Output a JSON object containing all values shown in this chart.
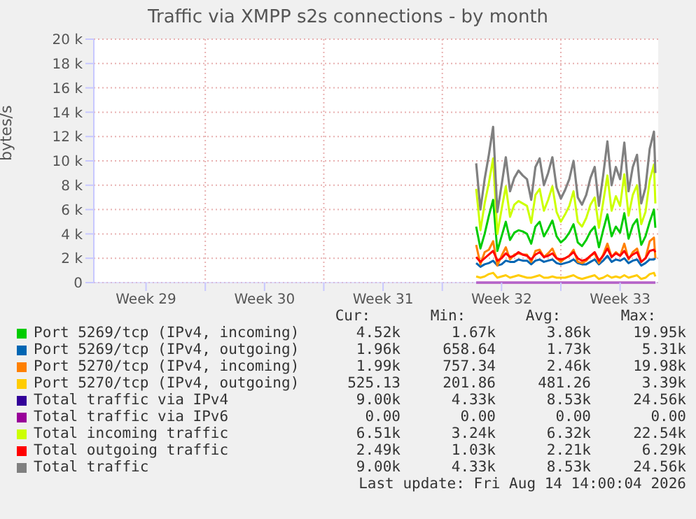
{
  "chart_data": {
    "type": "line",
    "title": "Traffic via XMPP s2s connections - by month",
    "ylabel": "bytes/s",
    "x": [
      "2026-08-04T00:00",
      "2026-08-04T06:00",
      "2026-08-04T12:00",
      "2026-08-04T18:00",
      "2026-08-05T00:00",
      "2026-08-05T06:00",
      "2026-08-05T12:00",
      "2026-08-05T18:00",
      "2026-08-06T00:00",
      "2026-08-06T06:00",
      "2026-08-06T12:00",
      "2026-08-06T18:00",
      "2026-08-07T00:00",
      "2026-08-07T06:00",
      "2026-08-07T12:00",
      "2026-08-07T18:00",
      "2026-08-08T00:00",
      "2026-08-08T06:00",
      "2026-08-08T12:00",
      "2026-08-08T18:00",
      "2026-08-09T00:00",
      "2026-08-09T06:00",
      "2026-08-09T12:00",
      "2026-08-09T18:00",
      "2026-08-10T00:00",
      "2026-08-10T06:00",
      "2026-08-10T12:00",
      "2026-08-10T18:00",
      "2026-08-11T00:00",
      "2026-08-11T06:00",
      "2026-08-11T12:00",
      "2026-08-11T18:00",
      "2026-08-12T00:00",
      "2026-08-12T06:00",
      "2026-08-12T12:00",
      "2026-08-12T18:00",
      "2026-08-13T00:00",
      "2026-08-13T06:00",
      "2026-08-13T12:00",
      "2026-08-13T18:00",
      "2026-08-14T00:00",
      "2026-08-14T06:00",
      "2026-08-14T12:00",
      "2026-08-14T14:00"
    ],
    "series": [
      {
        "name": "Port 5269/tcp (IPv4, incoming)",
        "color": "#00cc00",
        "values": [
          4600,
          2800,
          4000,
          5500,
          6800,
          2600,
          3800,
          5000,
          3500,
          4100,
          4300,
          4200,
          4000,
          3200,
          4600,
          5000,
          3800,
          4400,
          5100,
          3800,
          3300,
          3600,
          4100,
          4800,
          3300,
          3000,
          3500,
          4200,
          4600,
          2900,
          4300,
          5600,
          3800,
          4600,
          4100,
          5700,
          3600,
          4700,
          5200,
          3100,
          3800,
          5000,
          6000,
          4500
        ]
      },
      {
        "name": "Port 5269/tcp (IPv4, outgoing)",
        "color": "#0066b3",
        "values": [
          1600,
          1300,
          1500,
          1600,
          1800,
          1400,
          1500,
          1800,
          1700,
          1700,
          1900,
          1800,
          1800,
          1500,
          1800,
          1900,
          1700,
          1800,
          1900,
          1600,
          1500,
          1600,
          1700,
          1900,
          1600,
          1500,
          1500,
          1700,
          1900,
          1500,
          1800,
          2200,
          1700,
          1900,
          1800,
          2000,
          1600,
          1800,
          1900,
          1400,
          1600,
          1900,
          1900,
          2000
        ]
      },
      {
        "name": "Port 5270/tcp (IPv4, incoming)",
        "color": "#ff8000",
        "values": [
          3100,
          1500,
          2500,
          2700,
          3400,
          1400,
          2200,
          2900,
          1900,
          2300,
          2400,
          2300,
          2300,
          1700,
          2600,
          2700,
          2100,
          2400,
          2800,
          2000,
          1700,
          2000,
          2200,
          2700,
          1700,
          1600,
          1800,
          2200,
          2400,
          1600,
          2300,
          3200,
          2100,
          2500,
          2200,
          3200,
          1900,
          2500,
          2800,
          1700,
          2000,
          3400,
          3700,
          2000
        ]
      },
      {
        "name": "Port 5270/tcp (IPv4, outgoing)",
        "color": "#ffcc00",
        "values": [
          500,
          400,
          500,
          700,
          800,
          400,
          500,
          600,
          400,
          500,
          600,
          500,
          400,
          400,
          500,
          600,
          400,
          400,
          500,
          400,
          400,
          400,
          500,
          600,
          400,
          300,
          400,
          500,
          600,
          300,
          400,
          600,
          400,
          500,
          400,
          600,
          400,
          500,
          600,
          300,
          400,
          700,
          800,
          500
        ]
      },
      {
        "name": "Total traffic via IPv4",
        "color": "#330099",
        "values": [
          null,
          null,
          null,
          null,
          null,
          null,
          null,
          null,
          null,
          null,
          null,
          null,
          null,
          null,
          null,
          null,
          null,
          null,
          null,
          null,
          null,
          null,
          null,
          null,
          null,
          null,
          null,
          null,
          null,
          null,
          null,
          null,
          null,
          null,
          null,
          null,
          null,
          null,
          null,
          null,
          null,
          null,
          null,
          null
        ]
      },
      {
        "name": "Total traffic via IPv6",
        "color": "#990099",
        "values": [
          0,
          0,
          0,
          0,
          0,
          0,
          0,
          0,
          0,
          0,
          0,
          0,
          0,
          0,
          0,
          0,
          0,
          0,
          0,
          0,
          0,
          0,
          0,
          0,
          0,
          0,
          0,
          0,
          0,
          0,
          0,
          0,
          0,
          0,
          0,
          0,
          0,
          0,
          0,
          0,
          0,
          0,
          0,
          0
        ]
      },
      {
        "name": "Total incoming traffic",
        "color": "#ccff00",
        "values": [
          7700,
          4300,
          6500,
          8200,
          10200,
          4000,
          6000,
          7900,
          5400,
          6400,
          6700,
          6500,
          6300,
          4900,
          7200,
          7700,
          5900,
          6800,
          7900,
          5800,
          5000,
          5600,
          6300,
          7500,
          5000,
          4600,
          5300,
          6400,
          7000,
          4500,
          6600,
          8800,
          5900,
          7100,
          6300,
          8900,
          5500,
          7200,
          8000,
          4800,
          5800,
          8400,
          9700,
          6500
        ]
      },
      {
        "name": "Total outgoing traffic",
        "color": "#ff0000",
        "values": [
          2100,
          1700,
          2000,
          2300,
          2600,
          1800,
          2000,
          2400,
          2100,
          2200,
          2500,
          2300,
          2200,
          1900,
          2300,
          2500,
          2100,
          2200,
          2400,
          2000,
          1900,
          2000,
          2200,
          2500,
          2000,
          1800,
          1900,
          2200,
          2500,
          1800,
          2200,
          2800,
          2100,
          2400,
          2200,
          2600,
          2000,
          2300,
          2500,
          1700,
          2000,
          2600,
          2700,
          2500
        ]
      },
      {
        "name": "Total traffic",
        "color": "#808080",
        "values": [
          9800,
          6000,
          8500,
          10500,
          12800,
          5800,
          8000,
          10300,
          7500,
          8600,
          9200,
          8800,
          8500,
          6800,
          9500,
          10200,
          8000,
          9000,
          10300,
          7800,
          6900,
          7600,
          8500,
          10000,
          7000,
          6400,
          7200,
          8600,
          9500,
          6300,
          8800,
          11600,
          8000,
          9500,
          8500,
          11500,
          7500,
          9500,
          10500,
          6500,
          7800,
          11000,
          12400,
          9000
        ]
      }
    ],
    "xlim": [
      "2026-07-12T10:00",
      "2026-08-14T18:00"
    ],
    "xticks": [
      {
        "value": "2026-07-15T12:00",
        "label": "Week 29"
      },
      {
        "value": "2026-07-19T00:00",
        "label": null
      },
      {
        "value": "2026-07-22T12:00",
        "label": "Week 30"
      },
      {
        "value": "2026-07-26T00:00",
        "label": null
      },
      {
        "value": "2026-07-29T12:00",
        "label": "Week 31"
      },
      {
        "value": "2026-08-02T00:00",
        "label": null
      },
      {
        "value": "2026-08-05T12:00",
        "label": "Week 32"
      },
      {
        "value": "2026-08-09T00:00",
        "label": null
      },
      {
        "value": "2026-08-12T12:00",
        "label": "Week 33"
      }
    ],
    "ylim": [
      0,
      20000
    ],
    "yticks": [
      0,
      {
        "value": 2000,
        "label": "2 k"
      },
      {
        "value": 4000,
        "label": "4 k"
      },
      {
        "value": 6000,
        "label": "6 k"
      },
      {
        "value": 8000,
        "label": "8 k"
      },
      {
        "value": 10000,
        "label": "10 k"
      },
      {
        "value": 12000,
        "label": "12 k"
      },
      {
        "value": 14000,
        "label": "14 k"
      },
      {
        "value": 16000,
        "label": "16 k"
      },
      {
        "value": 18000,
        "label": "18 k"
      },
      {
        "value": 20000,
        "label": "20 k"
      }
    ],
    "grid": true,
    "legend": "bottom",
    "marker": "none",
    "line_style": "solid",
    "annotations": [
      "Cur:",
      "Min:",
      "Avg:",
      "Max:",
      "4.52k",
      "1.67k",
      "3.86k",
      "19.95k",
      "1.96k",
      "658.64",
      "1.73k",
      "5.31k",
      "1.99k",
      "757.34",
      "2.46k",
      "19.98k",
      "525.13",
      "201.86",
      "481.26",
      "3.39k",
      "9.00k",
      "4.33k",
      "8.53k",
      "24.56k",
      "0.00",
      "0.00",
      "0.00",
      "0.00",
      "6.51k",
      "3.24k",
      "6.32k",
      "22.54k",
      "2.49k",
      "1.03k",
      "2.21k",
      "6.29k",
      "9.00k",
      "4.33k",
      "8.53k",
      "24.56k",
      "Last update: Fri Aug 14 14:00:04 2026"
    ]
  }
}
